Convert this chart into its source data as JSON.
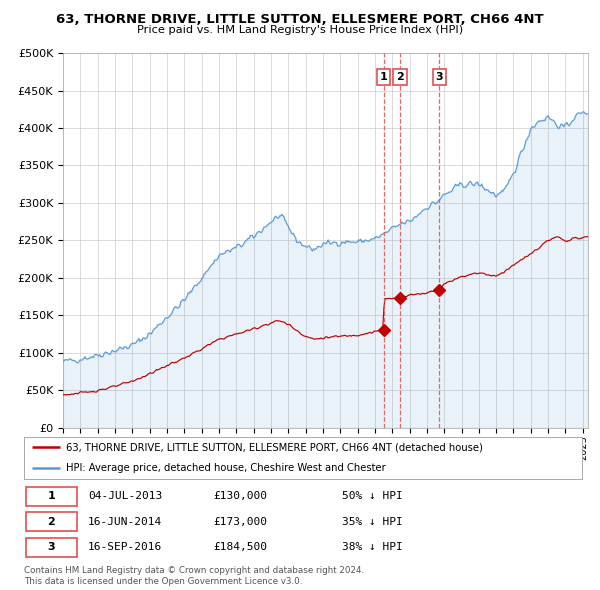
{
  "title": "63, THORNE DRIVE, LITTLE SUTTON, ELLESMERE PORT, CH66 4NT",
  "subtitle": "Price paid vs. HM Land Registry's House Price Index (HPI)",
  "legend_line1": "63, THORNE DRIVE, LITTLE SUTTON, ELLESMERE PORT, CH66 4NT (detached house)",
  "legend_line2": "HPI: Average price, detached house, Cheshire West and Chester",
  "transactions": [
    {
      "num": 1,
      "date": "04-JUL-2013",
      "price": 130000,
      "pct": "50% ↓ HPI",
      "date_x": 2013.5
    },
    {
      "num": 2,
      "date": "16-JUN-2014",
      "price": 173000,
      "pct": "35% ↓ HPI",
      "date_x": 2014.45
    },
    {
      "num": 3,
      "date": "16-SEP-2016",
      "price": 184500,
      "pct": "38% ↓ HPI",
      "date_x": 2016.71
    }
  ],
  "footer": "Contains HM Land Registry data © Crown copyright and database right 2024.\nThis data is licensed under the Open Government Licence v3.0.",
  "hpi_color": "#5b9bd5",
  "property_color": "#c00000",
  "vline_color": "#e05050",
  "plot_bg": "#ffffff",
  "ylim": [
    0,
    500000
  ],
  "yticks": [
    0,
    50000,
    100000,
    150000,
    200000,
    250000,
    300000,
    350000,
    400000,
    450000,
    500000
  ],
  "xlim_start": 1995.0,
  "xlim_end": 2025.3,
  "hpi_anchors_year": [
    1995,
    1996,
    1997,
    1998,
    1999,
    2000,
    2001,
    2002,
    2003,
    2004,
    2005,
    2006,
    2007,
    2007.5,
    2008,
    2008.5,
    2009,
    2009.5,
    2010,
    2011,
    2012,
    2013,
    2013.5,
    2014,
    2014.5,
    2015,
    2016,
    2016.5,
    2017,
    2018,
    2019,
    2020,
    2020.5,
    2021,
    2022,
    2022.5,
    2023,
    2023.5,
    2024,
    2024.5,
    2025,
    2025.3
  ],
  "hpi_anchors_val": [
    88000,
    92000,
    97000,
    103000,
    110000,
    125000,
    148000,
    170000,
    200000,
    230000,
    240000,
    255000,
    275000,
    283000,
    268000,
    250000,
    242000,
    238000,
    245000,
    248000,
    248000,
    252000,
    258000,
    265000,
    272000,
    275000,
    295000,
    300000,
    310000,
    325000,
    325000,
    310000,
    315000,
    340000,
    400000,
    410000,
    415000,
    405000,
    400000,
    415000,
    420000,
    422000
  ],
  "prop_anchors_year": [
    1995,
    1996,
    1997,
    1998,
    1999,
    2000,
    2001,
    2002,
    2003,
    2004,
    2005,
    2006,
    2007,
    2007.5,
    2008,
    2008.5,
    2009,
    2009.5,
    2010,
    2011,
    2012,
    2012.5,
    2013,
    2013.45,
    2013.55,
    2014.0,
    2014.45,
    2014.55,
    2015,
    2016,
    2016.5,
    2016.71,
    2017,
    2018,
    2019,
    2020,
    2021,
    2022,
    2023,
    2023.5,
    2024,
    2024.5,
    2025,
    2025.3
  ],
  "prop_anchors_val": [
    44000,
    46000,
    50000,
    55000,
    62000,
    72000,
    83000,
    93000,
    105000,
    118000,
    125000,
    132000,
    140000,
    143000,
    138000,
    130000,
    122000,
    118000,
    120000,
    122000,
    124000,
    126000,
    128000,
    130000,
    172000,
    172000,
    173000,
    175000,
    177000,
    180000,
    184000,
    184500,
    192000,
    202000,
    207000,
    202000,
    217000,
    232000,
    250000,
    254000,
    250000,
    252000,
    254000,
    255000
  ]
}
